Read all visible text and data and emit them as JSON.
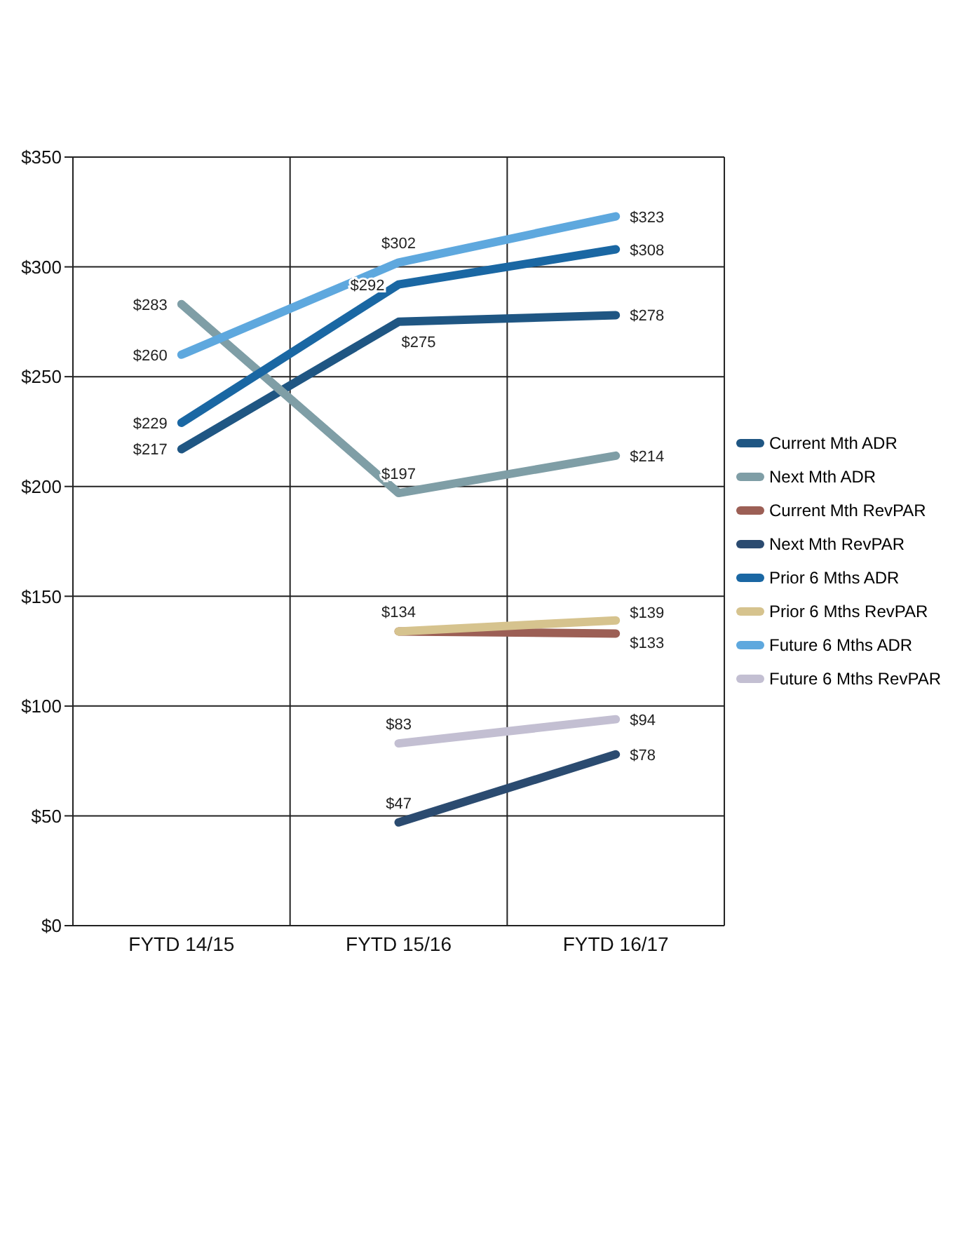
{
  "chart_data": {
    "type": "line",
    "categories": [
      "FYTD 14/15",
      "FYTD 15/16",
      "FYTD 16/17"
    ],
    "series": [
      {
        "name": "Current Mth ADR",
        "color": "#1f5683",
        "values": [
          217,
          275,
          278
        ],
        "value_labels": [
          "$217",
          "$275",
          "$278"
        ]
      },
      {
        "name": "Next Mth ADR",
        "color": "#7f9ea6",
        "values": [
          283,
          197,
          214
        ],
        "value_labels": [
          "$283",
          "$197",
          "$214"
        ]
      },
      {
        "name": "Current Mth RevPAR",
        "color": "#9c5f55",
        "values": [
          null,
          134,
          133
        ],
        "value_labels": [
          null,
          null,
          "$133"
        ]
      },
      {
        "name": "Next Mth RevPAR",
        "color": "#2b4b70",
        "values": [
          null,
          47,
          78
        ],
        "value_labels": [
          null,
          "$47",
          "$78"
        ]
      },
      {
        "name": "Prior 6 Mths ADR",
        "color": "#1a67a3",
        "values": [
          229,
          292,
          308
        ],
        "value_labels": [
          "$229",
          "$292",
          "$308"
        ]
      },
      {
        "name": "Prior 6 Mths RevPAR",
        "color": "#d6c38e",
        "values": [
          null,
          134,
          139
        ],
        "value_labels": [
          null,
          "$134",
          "$139"
        ]
      },
      {
        "name": "Future 6 Mths ADR",
        "color": "#5ea8de",
        "values": [
          260,
          302,
          323
        ],
        "value_labels": [
          "$260",
          "$302",
          "$323"
        ]
      },
      {
        "name": "Future 6 Mths RevPAR",
        "color": "#c3bfd2",
        "values": [
          null,
          83,
          94
        ],
        "value_labels": [
          null,
          "$83",
          "$94"
        ]
      }
    ],
    "ylim": [
      0,
      350
    ],
    "yticks": [
      {
        "value": 0,
        "label": "$0"
      },
      {
        "value": 50,
        "label": "$50"
      },
      {
        "value": 100,
        "label": "$100"
      },
      {
        "value": 150,
        "label": "$150"
      },
      {
        "value": 200,
        "label": "$200"
      },
      {
        "value": 250,
        "label": "$250"
      },
      {
        "value": 300,
        "label": "$300"
      },
      {
        "value": 350,
        "label": "$350"
      }
    ],
    "grid": true,
    "legend": "right",
    "marker": "none",
    "line_style": "solid"
  }
}
